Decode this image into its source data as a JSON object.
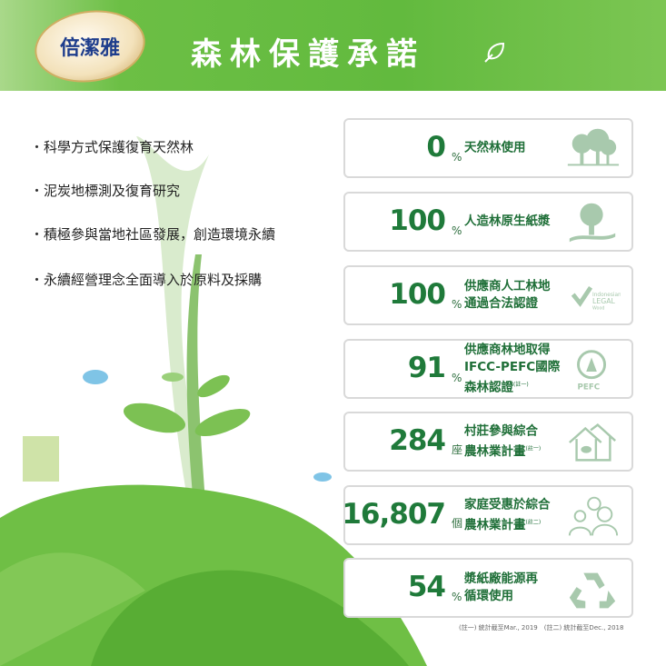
{
  "header": {
    "brand": "倍潔雅",
    "title": "森林保護承諾",
    "icon": "leaf-icon"
  },
  "bullets": [
    "科學方式保護復育天然林",
    "泥炭地標測及復育研究",
    "積極參與當地社區發展，創造環境永續",
    "永續經營理念全面導入於原料及採購"
  ],
  "stats": [
    {
      "value": "0",
      "unit": "%",
      "text": "天然林使用",
      "note": "",
      "icon": "trees-icon"
    },
    {
      "value": "100",
      "unit": "%",
      "text": "人造林原生紙漿",
      "note": "",
      "icon": "tree-icon"
    },
    {
      "value": "100",
      "unit": "%",
      "text": "供應商人工林地\n通過合法認證",
      "note": "",
      "icon": "legal-wood-icon",
      "logo_text": "Indonesian LEGAL Wood"
    },
    {
      "value": "91",
      "unit": "%",
      "text": "供應商林地取得\nIFCC-PEFC國際\n森林認證",
      "note": "(註一)",
      "icon": "pefc-icon",
      "logo_text": "PEFC"
    },
    {
      "value": "284",
      "unit": "座",
      "text": "村莊參與綜合\n農林業計畫",
      "note": "(註一)",
      "icon": "house-leaf-icon"
    },
    {
      "value": "16,807",
      "unit": "個",
      "text": "家庭受惠於綜合\n農林業計畫",
      "note": "(註二)",
      "icon": "family-icon"
    },
    {
      "value": "54",
      "unit": "%",
      "text": "漿紙廠能源再\n循環使用",
      "note": "",
      "icon": "recycle-icon"
    }
  ],
  "footnote": "(註一) 統計截至Mar., 2019　(註二) 統計截至Dec., 2018",
  "colors": {
    "header_green": "#62ba3e",
    "stat_green": "#1f7a3a",
    "icon_green": "#a8c9ad"
  }
}
